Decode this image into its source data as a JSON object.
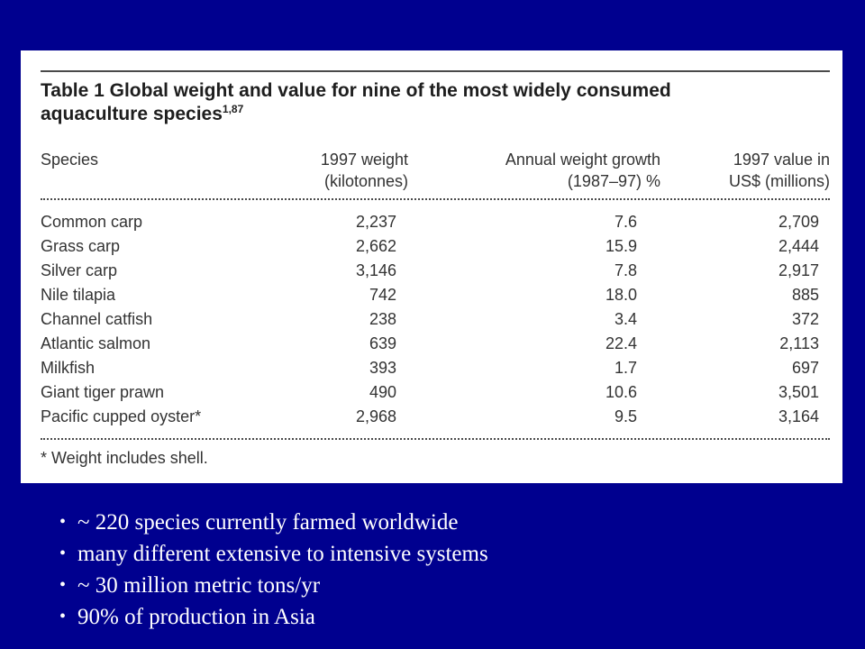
{
  "table": {
    "title": "Table 1 Global weight and value for nine of the most widely consumed aquaculture species",
    "title_line1": "Table 1 Global weight and value for nine of the most widely consumed",
    "title_line2": "aquaculture species",
    "title_sup": "1,87",
    "headers": {
      "species": "Species",
      "weight_1": "1997 weight",
      "weight_2": "(kilotonnes)",
      "growth_1": "Annual weight growth",
      "growth_2": "(1987–97) %",
      "value_1": "1997 value in",
      "value_2": "US$ (millions)"
    },
    "rows": [
      {
        "species": "Common carp",
        "weight": "2,237",
        "growth": "7.6",
        "value": "2,709"
      },
      {
        "species": "Grass carp",
        "weight": "2,662",
        "growth": "15.9",
        "value": "2,444"
      },
      {
        "species": "Silver carp",
        "weight": "3,146",
        "growth": "7.8",
        "value": "2,917"
      },
      {
        "species": "Nile tilapia",
        "weight": "742",
        "growth": "18.0",
        "value": "885"
      },
      {
        "species": "Channel catfish",
        "weight": "238",
        "growth": "3.4",
        "value": "372"
      },
      {
        "species": "Atlantic salmon",
        "weight": "639",
        "growth": "22.4",
        "value": "2,113"
      },
      {
        "species": "Milkfish",
        "weight": "393",
        "growth": "1.7",
        "value": "697"
      },
      {
        "species": "Giant tiger prawn",
        "weight": "490",
        "growth": "10.6",
        "value": "3,501"
      },
      {
        "species": "Pacific cupped oyster*",
        "weight": "2,968",
        "growth": "9.5",
        "value": "3,164"
      }
    ],
    "footnote": "* Weight includes shell."
  },
  "bullets": [
    "~ 220 species currently farmed worldwide",
    "many different extensive to intensive systems",
    "~ 30 million metric tons/yr",
    "90% of production in Asia"
  ],
  "colors": {
    "background": "#00008f",
    "card": "#ffffff",
    "table_text": "#333333",
    "bullet_text": "#ffffff"
  }
}
